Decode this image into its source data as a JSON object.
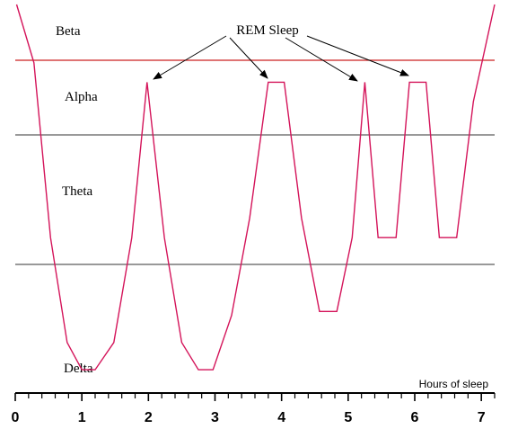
{
  "chart_data": {
    "type": "line",
    "title": "",
    "xlabel": "Hours of sleep",
    "ylabel": "",
    "xlim": [
      0,
      7.2
    ],
    "x_ticks": [
      0,
      1,
      2,
      3,
      4,
      5,
      6,
      7
    ],
    "x_minor_step": 0.2,
    "stages": [
      "Beta",
      "Alpha",
      "Theta",
      "Delta"
    ],
    "annotation": "REM Sleep",
    "grid": false,
    "colors": {
      "curve": "#d4145a",
      "alpha_boundary": "#cc2222",
      "boundary": "#333333",
      "axis": "#000000"
    },
    "series": [
      {
        "points": [
          [
            0.02,
            1.0
          ],
          [
            0.28,
            0.85
          ],
          [
            0.53,
            0.4
          ],
          [
            0.78,
            0.13
          ],
          [
            1.0,
            0.06
          ],
          [
            1.2,
            0.06
          ],
          [
            1.48,
            0.13
          ],
          [
            1.75,
            0.4
          ],
          [
            1.98,
            0.8
          ],
          [
            2.24,
            0.4
          ],
          [
            2.5,
            0.13
          ],
          [
            2.75,
            0.06
          ],
          [
            2.97,
            0.06
          ],
          [
            3.25,
            0.2
          ],
          [
            3.52,
            0.45
          ],
          [
            3.8,
            0.8
          ],
          [
            4.04,
            0.8
          ],
          [
            4.3,
            0.45
          ],
          [
            4.57,
            0.21
          ],
          [
            4.83,
            0.21
          ],
          [
            5.06,
            0.4
          ],
          [
            5.25,
            0.8
          ],
          [
            5.45,
            0.4
          ],
          [
            5.72,
            0.4
          ],
          [
            5.92,
            0.8
          ],
          [
            6.17,
            0.8
          ],
          [
            6.37,
            0.4
          ],
          [
            6.63,
            0.4
          ],
          [
            6.88,
            0.75
          ],
          [
            7.2,
            1.0
          ]
        ]
      }
    ]
  }
}
